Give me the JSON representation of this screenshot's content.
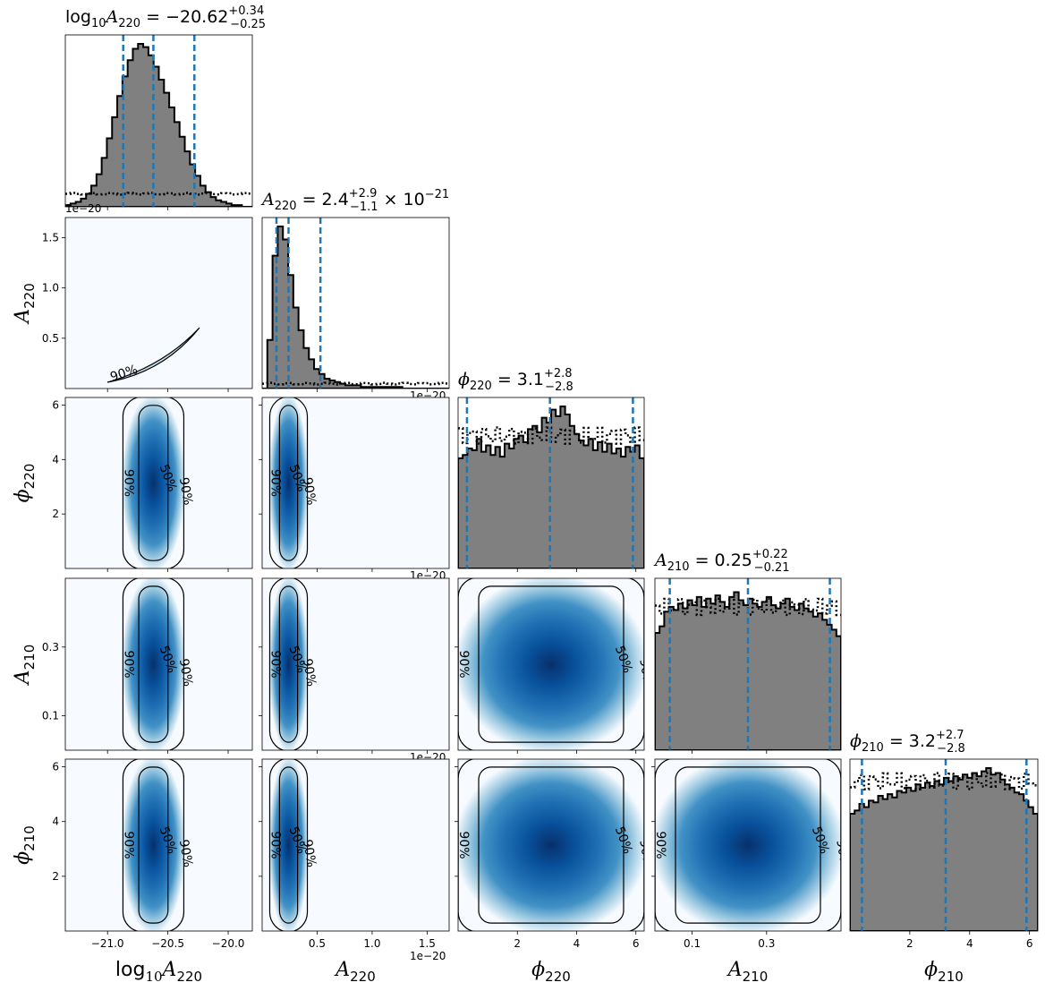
{
  "chart_data": {
    "type": "corner",
    "parameters": [
      {
        "key": "logA220",
        "label_base": "log",
        "label_sub1": "10",
        "label_main": "A",
        "label_sub2": "220",
        "range": [
          -21.35,
          -19.8
        ],
        "ticks": [
          -21.0,
          -20.5,
          -20.0
        ],
        "tick_labels": [
          "−21.0",
          "−20.5",
          "−20.0"
        ]
      },
      {
        "key": "A220",
        "label_main": "A",
        "label_sub2": "220",
        "range": [
          0.0,
          1.7
        ],
        "ticks": [
          0.5,
          1.0,
          1.5
        ],
        "tick_labels": [
          "0.5",
          "1.0",
          "1.5"
        ],
        "offset": "1e−20"
      },
      {
        "key": "phi220",
        "label_main": "ϕ",
        "label_sub2": "220",
        "range": [
          0.0,
          6.28
        ],
        "ticks": [
          2,
          4,
          6
        ],
        "tick_labels": [
          "2",
          "4",
          "6"
        ]
      },
      {
        "key": "A210",
        "label_main": "A",
        "label_sub2": "210",
        "range": [
          0.0,
          0.5
        ],
        "ticks": [
          0.1,
          0.3
        ],
        "tick_labels": [
          "0.1",
          "0.3"
        ]
      },
      {
        "key": "phi210",
        "label_main": "ϕ",
        "label_sub2": "210",
        "range": [
          0.0,
          6.28
        ],
        "ticks": [
          2,
          4,
          6
        ],
        "tick_labels": [
          "2",
          "4",
          "6"
        ]
      }
    ],
    "titles": [
      {
        "prefix": "log",
        "prefix_sub": "10",
        "sym": "A",
        "sym_sub": "220",
        "eq": " = −20.62",
        "plus": "+0.34",
        "minus": "−0.25",
        "suffix": ""
      },
      {
        "prefix": "",
        "prefix_sub": "",
        "sym": "A",
        "sym_sub": "220",
        "eq": " = 2.4",
        "plus": "+2.9",
        "minus": "−1.1",
        "suffix": " × 10",
        "suffix_sup": "−21"
      },
      {
        "prefix": "",
        "prefix_sub": "",
        "sym": "ϕ",
        "sym_sub": "220",
        "eq": " = 3.1",
        "plus": "+2.8",
        "minus": "−2.8",
        "suffix": ""
      },
      {
        "prefix": "",
        "prefix_sub": "",
        "sym": "A",
        "sym_sub": "210",
        "eq": " = 0.25",
        "plus": "+0.22",
        "minus": "−0.21",
        "suffix": ""
      },
      {
        "prefix": "",
        "prefix_sub": "",
        "sym": "ϕ",
        "sym_sub": "210",
        "eq": " = 3.2",
        "plus": "+2.7",
        "minus": "−2.8",
        "suffix": ""
      }
    ],
    "quantiles": [
      [
        -20.87,
        -20.62,
        -20.28
      ],
      [
        0.13,
        0.24,
        0.53
      ],
      [
        0.3,
        3.1,
        5.9
      ],
      [
        0.04,
        0.25,
        0.47
      ],
      [
        0.4,
        3.2,
        5.9
      ]
    ],
    "histograms": [
      [
        0.01,
        0.02,
        0.03,
        0.05,
        0.08,
        0.13,
        0.2,
        0.3,
        0.42,
        0.55,
        0.68,
        0.8,
        0.9,
        0.97,
        1.0,
        0.98,
        0.93,
        0.86,
        0.78,
        0.7,
        0.61,
        0.52,
        0.43,
        0.34,
        0.26,
        0.19,
        0.13,
        0.09,
        0.06,
        0.04,
        0.03,
        0.02,
        0.01,
        0.01,
        0.0,
        0.0
      ],
      [
        0.0,
        0.3,
        0.82,
        1.0,
        0.92,
        0.7,
        0.5,
        0.36,
        0.25,
        0.18,
        0.12,
        0.09,
        0.06,
        0.05,
        0.04,
        0.03,
        0.02,
        0.02,
        0.02,
        0.01,
        0.01,
        0.01,
        0.01,
        0.01,
        0.01,
        0.01,
        0.01,
        0.0,
        0.0,
        0.0,
        0.0,
        0.0,
        0.0,
        0.0,
        0.0,
        0.0
      ],
      [
        0.68,
        0.7,
        0.74,
        0.73,
        0.8,
        0.72,
        0.76,
        0.7,
        0.75,
        0.69,
        0.77,
        0.74,
        0.8,
        0.82,
        0.78,
        0.86,
        0.88,
        0.84,
        0.93,
        0.9,
        0.98,
        0.94,
        1.0,
        0.95,
        0.88,
        0.83,
        0.79,
        0.76,
        0.8,
        0.73,
        0.78,
        0.72,
        0.77,
        0.71,
        0.74,
        0.69,
        0.75,
        0.72,
        0.76,
        0.68
      ],
      [
        0.72,
        0.76,
        0.85,
        0.88,
        0.86,
        0.9,
        0.87,
        0.92,
        0.89,
        0.94,
        0.88,
        0.93,
        0.9,
        0.95,
        0.91,
        0.88,
        0.94,
        0.97,
        0.92,
        0.89,
        0.93,
        0.9,
        0.88,
        0.91,
        0.94,
        0.89,
        0.87,
        0.9,
        0.93,
        0.88,
        0.86,
        0.9,
        0.87,
        0.85,
        0.82,
        0.84,
        0.8,
        0.77,
        0.74,
        0.7
      ],
      [
        0.72,
        0.74,
        0.78,
        0.76,
        0.8,
        0.79,
        0.83,
        0.81,
        0.84,
        0.82,
        0.86,
        0.85,
        0.88,
        0.86,
        0.9,
        0.88,
        0.91,
        0.89,
        0.92,
        0.9,
        0.94,
        0.92,
        0.95,
        0.93,
        0.96,
        0.94,
        0.97,
        0.95,
        0.98,
        1.0,
        0.96,
        0.97,
        0.93,
        0.9,
        0.88,
        0.85,
        0.84,
        0.8,
        0.76,
        0.72
      ]
    ],
    "prior_level": [
      0.08,
      0.03,
      0.82,
      0.88,
      0.92
    ],
    "contour_levels": [
      "50%",
      "90%"
    ],
    "blue_cmap": [
      "#f7fbff",
      "#deebf7",
      "#c6dbef",
      "#9ecae1",
      "#6baed6",
      "#4292c6",
      "#2171b5",
      "#08519c",
      "#08306b"
    ],
    "hist_fill": "#808080",
    "quantile_color": "#1f77b4"
  }
}
